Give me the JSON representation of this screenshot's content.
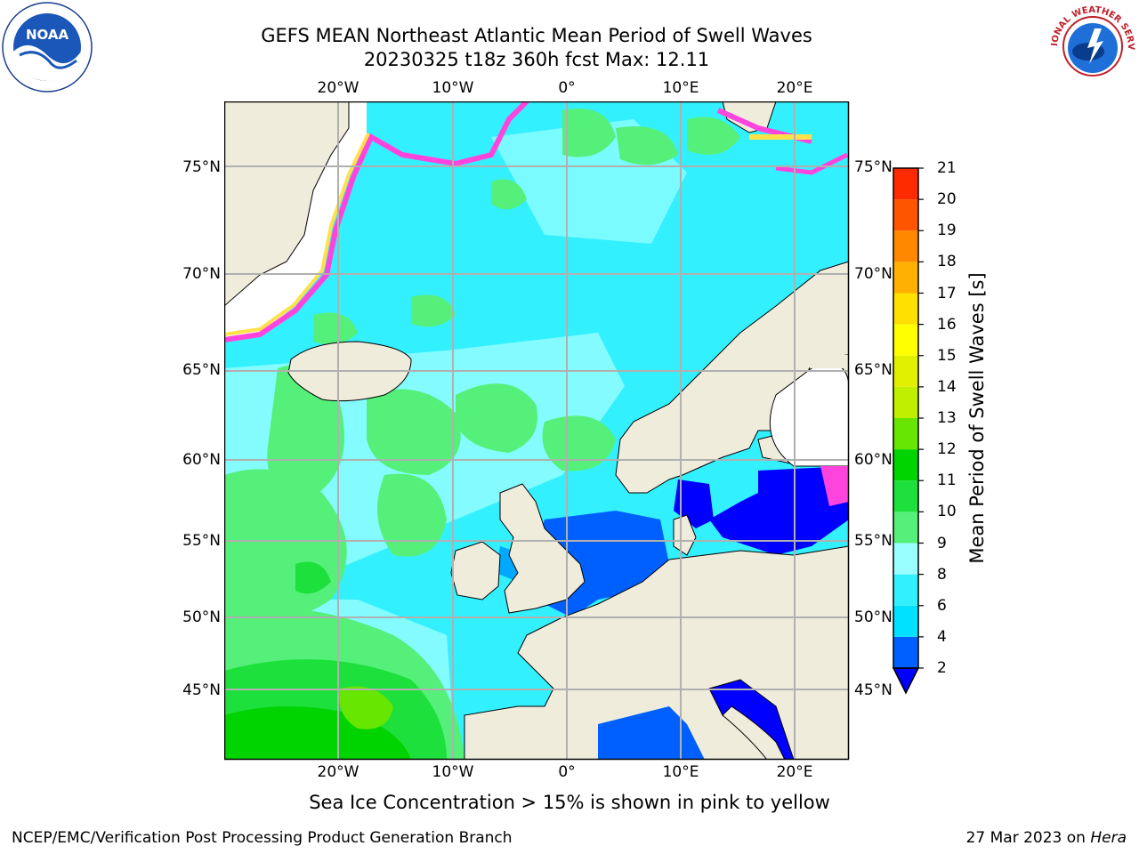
{
  "header": {
    "title_line1": "GEFS MEAN Northeast Atlantic Mean Period of Swell Waves",
    "title_line2": "20230325 t18z 360h fcst   Max: 12.11"
  },
  "map": {
    "longitude_labels": [
      "20°W",
      "10°W",
      "0°",
      "10°E",
      "20°E"
    ],
    "latitude_labels": [
      "75°N",
      "70°N",
      "65°N",
      "60°N",
      "55°N",
      "50°N",
      "45°N"
    ],
    "colors": {
      "land": "#efecdc",
      "ice_region": "#ffffff",
      "grid": "#b0b0b0",
      "sea_ice_pink": "#ff44dd",
      "sea_ice_yellow": "#ffe24a"
    }
  },
  "colorbar": {
    "title": "Mean Period of Swell Waves [s]",
    "tick_labels": [
      "2",
      "4",
      "6",
      "8",
      "9",
      "10",
      "11",
      "12",
      "13",
      "14",
      "15",
      "16",
      "17",
      "18",
      "19",
      "20",
      "21"
    ],
    "bin_colors": [
      "#0060ff",
      "#00e0ff",
      "#33f0ff",
      "#99ffff",
      "#55f07a",
      "#1ee03c",
      "#00d400",
      "#66e600",
      "#c0f000",
      "#e0f000",
      "#ffff00",
      "#ffe000",
      "#ffb000",
      "#ff8800",
      "#ff5500",
      "#ff2a00"
    ],
    "extend_below_color": "#0000ff"
  },
  "footnote": "Sea Ice Concentration > 15% is shown in pink to yellow",
  "credits": {
    "left": "NCEP/EMC/Verification Post Processing Product Generation Branch",
    "right_date": "27 Mar 2023 on ",
    "right_host": "Hera"
  },
  "logos": {
    "noaa_text": "NOAA",
    "nws_text": "NATIONAL WEATHER SERVICE"
  }
}
